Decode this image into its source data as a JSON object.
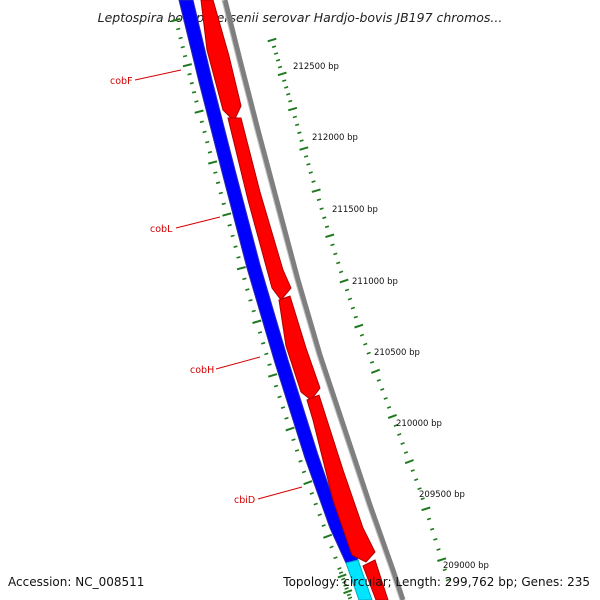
{
  "title": "Leptospira borgpetersenii serovar Hardjo-bovis JB197 chromos...",
  "position_labels": [
    "212500 bp",
    "212000 bp",
    "211500 bp",
    "211000 bp",
    "210500 bp",
    "210000 bp",
    "209500 bp",
    "209000 bp"
  ],
  "gene_labels": [
    "cobF",
    "cobL",
    "cobH",
    "cbiD"
  ],
  "footer": {
    "accession": "Accession: NC_008511",
    "topology": "Topology: circular; Length: 299,762 bp; Genes: 235"
  },
  "colors": {
    "forward_strand": "#ff0000",
    "reverse_strand": "#0000ff",
    "other_feature": "#00e5ff",
    "backbone": "#7f7f7f",
    "ticks": "#1f7a1f",
    "gene_label": "#d40000"
  }
}
